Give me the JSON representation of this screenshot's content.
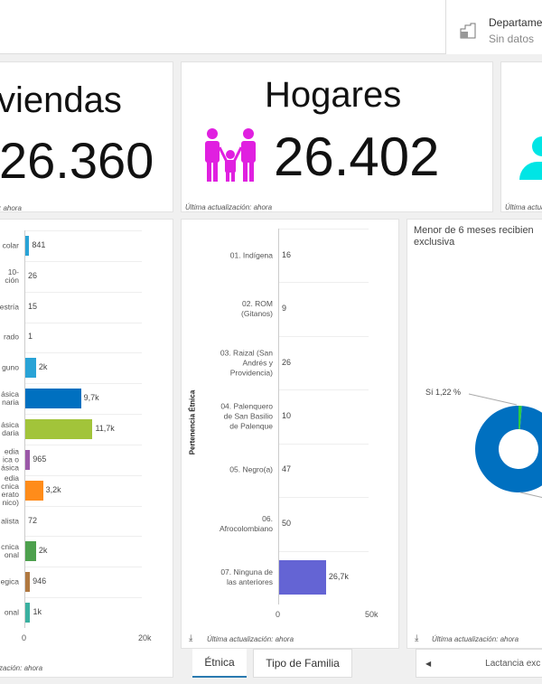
{
  "header": {
    "department_label": "Departame",
    "department_value": "Sin datos"
  },
  "cards": [
    {
      "title": "viendas",
      "value": "26.360",
      "updated": ": ahora"
    },
    {
      "title": "Hogares",
      "value": "26.402",
      "updated": "Última actualización: ahora",
      "icon": "family-icon",
      "icon_color": "#e020e0"
    },
    {
      "updated": "Última actualiz",
      "icon": "person-icon",
      "icon_color": "#00e5e5"
    }
  ],
  "chart_data": [
    {
      "type": "bar",
      "orientation": "horizontal",
      "xlim": [
        0,
        20000
      ],
      "ticks": [
        "0",
        "20k"
      ],
      "categories": [
        "colar",
        "10-\nción",
        "estría",
        "rado",
        "guno",
        "ásica\nnaria",
        "ásica\ndaria",
        "edia\nica o\násica",
        "edia\ncnica\nerato\nnico)",
        "alista",
        "cnica\nonal",
        "egica",
        "onal"
      ],
      "values": [
        841,
        26,
        15,
        1,
        2000,
        9700,
        11700,
        965,
        3200,
        72,
        2000,
        946,
        1000
      ],
      "labels": [
        "841",
        "26",
        "15",
        "1",
        "2k",
        "9,7k",
        "11,7k",
        "965",
        "3,2k",
        "72",
        "2k",
        "946",
        "1k"
      ],
      "colors": [
        "#29a3d6",
        "#6b6bb0",
        "#b07080",
        "#888888",
        "#29a3d6",
        "#0070c0",
        "#a2c43a",
        "#9b59a8",
        "#ff8c1a",
        "#f0e070",
        "#4da04d",
        "#b07840",
        "#3ab0a0"
      ],
      "updated": "zación: ahora"
    },
    {
      "type": "bar",
      "orientation": "horizontal",
      "xlim": [
        0,
        50000
      ],
      "ticks": [
        "0",
        "50k"
      ],
      "ylabel": "Pertenencia Étnica",
      "categories": [
        "01. Indígena",
        "02. ROM\n(Gitanos)",
        "03. Raizal (San\nAndrés y\nProvidencia)",
        "04. Palenquero\nde San Basilio\nde Palenque",
        "05. Negro(a)",
        "06.\nAfrocolombiano",
        "07. Ninguna de\nlas anteriores"
      ],
      "values": [
        16,
        9,
        26,
        10,
        47,
        50,
        26700
      ],
      "labels": [
        "16",
        "9",
        "26",
        "10",
        "47",
        "50",
        "26,7k"
      ],
      "colors": [
        "#e0b040",
        "#8a7a6a",
        "#f0e070",
        "#70b0b0",
        "#c04040",
        "#4a8a4a",
        "#6464d4"
      ],
      "updated": "Última actualización: ahora"
    },
    {
      "type": "pie",
      "donut": true,
      "title": "Menor de 6 meses recibien\nexclusiva",
      "slices": [
        {
          "label": "Sí 1,22 %",
          "value": 1.22,
          "color": "#2ecc40"
        },
        {
          "label": "",
          "value": 98.78,
          "color": "#0070c0"
        }
      ],
      "updated": "Última actualización: ahora"
    }
  ],
  "tabs": [
    {
      "label": "Étnica",
      "active": true
    },
    {
      "label": "Tipo de Familia",
      "active": false
    }
  ],
  "pager": {
    "label": "Lactancia exc"
  }
}
